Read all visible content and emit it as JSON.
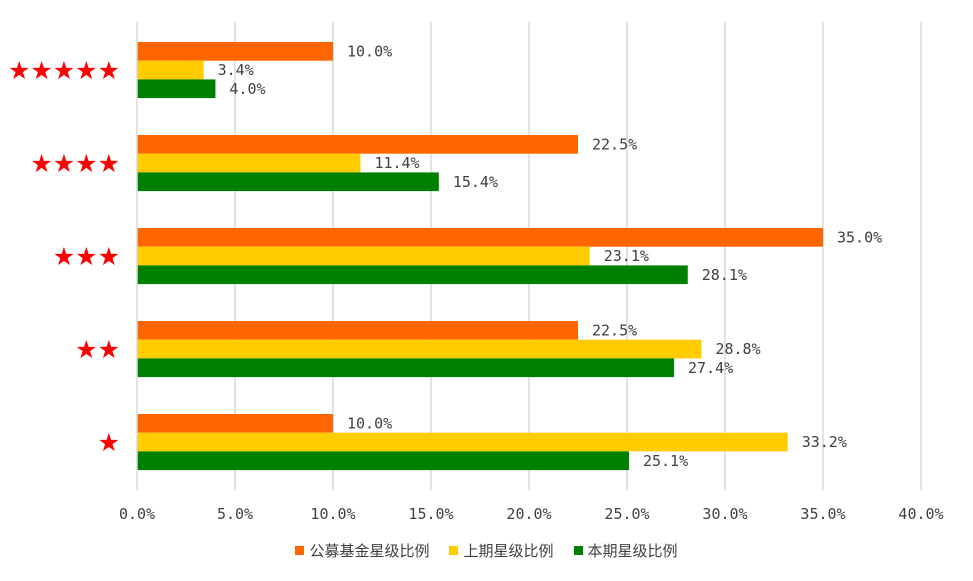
{
  "chart_data": {
    "type": "bar",
    "orientation": "horizontal",
    "categories": [
      "★★★★★",
      "★★★★",
      "★★★",
      "★★",
      "★"
    ],
    "series": [
      {
        "name": "公募基金星级比例",
        "color": "#ff6600",
        "values": [
          10.0,
          22.5,
          35.0,
          22.5,
          10.0
        ]
      },
      {
        "name": "上期星级比例",
        "color": "#ffcc00",
        "values": [
          3.4,
          11.4,
          23.1,
          28.8,
          33.2
        ]
      },
      {
        "name": "本期星级比例",
        "color": "#008000",
        "values": [
          4.0,
          15.4,
          28.1,
          27.4,
          25.1
        ]
      }
    ],
    "xlim": [
      0,
      40
    ],
    "ticks": [
      "0.0%",
      "5.0%",
      "10.0%",
      "15.0%",
      "20.0%",
      "25.0%",
      "30.0%",
      "35.0%",
      "40.0%"
    ],
    "value_suffix": "%",
    "grid": true,
    "legend_position": "bottom",
    "category_label_color": "#ff0000"
  }
}
